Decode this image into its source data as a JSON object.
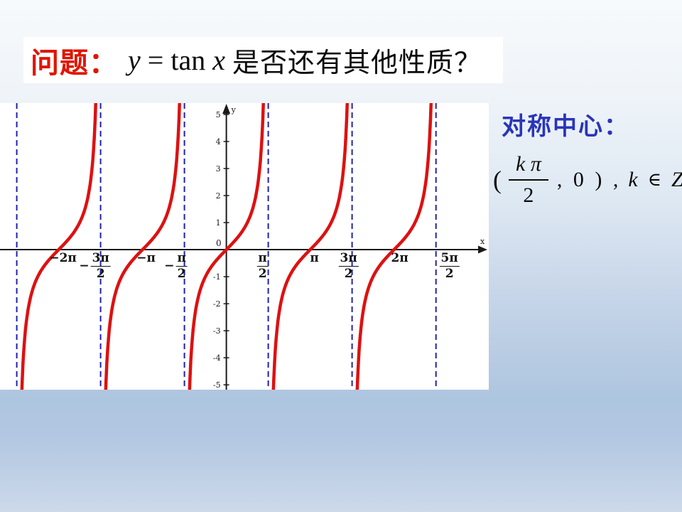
{
  "slide": {
    "title": {
      "label_red": "问题：",
      "math_y": "y",
      "math_eq": " = tan ",
      "math_x": "x",
      "rest": "是否还有其他性质？"
    },
    "right_panel": {
      "heading": "对称中心：",
      "formula": {
        "open": "(",
        "frac_num": "k π",
        "frac_den": "2",
        "mid": ", 0 ) ,",
        "k": "k",
        "element_of": "∈",
        "z": "Z"
      }
    },
    "colors": {
      "title_red": "#e11500",
      "heading_blue": "#2a35b8",
      "background_bottom_blue": "#aec5e0"
    }
  },
  "chart_data": {
    "type": "line",
    "title": "y = tan x",
    "curve_color": "#dd1111",
    "asymptote_color": "#2222aa",
    "axis_color": "#1a1a1a",
    "x_axis_label": "x",
    "y_axis_label": "y",
    "origin_label": "0",
    "x_range_pi": [
      -2.7,
      3.13
    ],
    "y_range": [
      -5.18,
      5.42
    ],
    "grid": false,
    "asymptotes_pi": [
      -2.5,
      -1.5,
      -0.5,
      0.5,
      1.5,
      2.5
    ],
    "branch_centers_pi": [
      -2,
      -1,
      0,
      1,
      2
    ],
    "y_ticks": [
      5,
      4,
      3,
      2,
      1,
      -1,
      -2,
      -3,
      -4,
      -5
    ],
    "x_tick_labels": [
      {
        "pos_pi": -2,
        "dx": 6,
        "plain": "−2π"
      },
      {
        "pos_pi": -1.5,
        "dx": -8,
        "sign": "−",
        "num": "3π",
        "den": "2"
      },
      {
        "pos_pi": -1,
        "dx": 5,
        "plain": "−π"
      },
      {
        "pos_pi": -0.5,
        "dx": -12,
        "sign": "−",
        "num": "π",
        "den": "2"
      },
      {
        "pos_pi": 0.5,
        "dx": -8,
        "num": "π",
        "den": "2"
      },
      {
        "pos_pi": 1,
        "dx": 6,
        "plain": "π"
      },
      {
        "pos_pi": 1.5,
        "dx": -5,
        "num": "3π",
        "den": "2"
      },
      {
        "pos_pi": 2,
        "dx": 8,
        "plain": "2π"
      },
      {
        "pos_pi": 2.5,
        "dx": 19,
        "num": "5π",
        "den": "2"
      }
    ]
  }
}
